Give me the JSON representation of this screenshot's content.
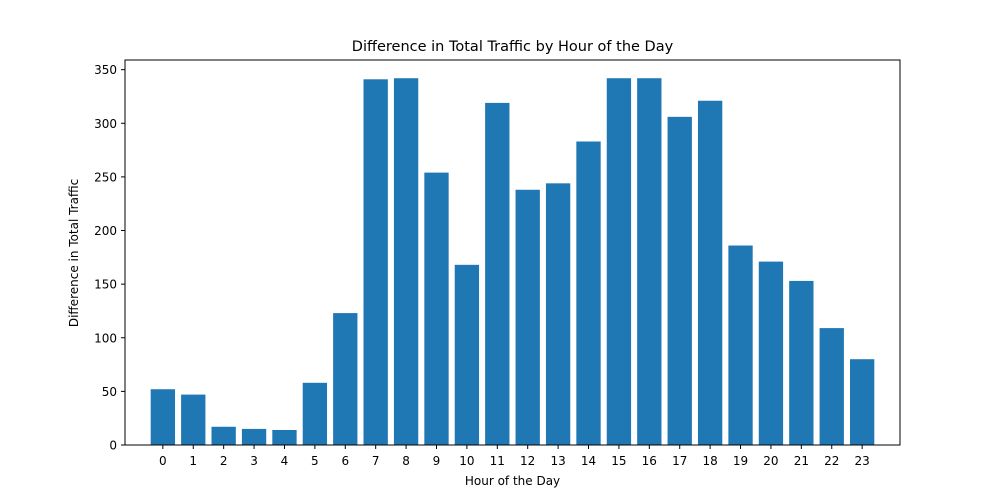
{
  "chart_data": {
    "type": "bar",
    "title": "Difference in Total Traffic by Hour of the Day",
    "xlabel": "Hour of the Day",
    "ylabel": "Difference in Total Traffic",
    "categories": [
      "0",
      "1",
      "2",
      "3",
      "4",
      "5",
      "6",
      "7",
      "8",
      "9",
      "10",
      "11",
      "12",
      "13",
      "14",
      "15",
      "16",
      "17",
      "18",
      "19",
      "20",
      "21",
      "22",
      "23"
    ],
    "values": [
      52,
      47,
      17,
      15,
      14,
      58,
      123,
      341,
      342,
      254,
      168,
      319,
      238,
      244,
      283,
      342,
      342,
      306,
      321,
      186,
      171,
      153,
      109,
      80
    ],
    "yticks": [
      0,
      50,
      100,
      150,
      200,
      250,
      300,
      350
    ],
    "ylim": [
      0,
      359
    ],
    "grid": false,
    "bar_color": "#1f77b4"
  }
}
